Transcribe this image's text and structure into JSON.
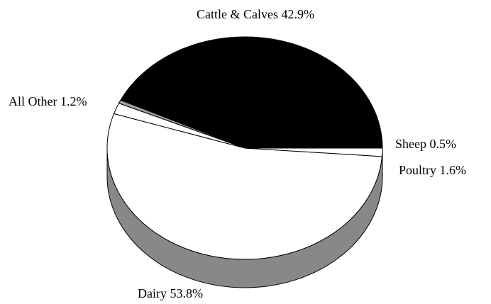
{
  "chart_data": {
    "type": "pie",
    "style": "3d",
    "title": "",
    "slices": [
      {
        "label": "Cattle & Calves 42.9%",
        "name": "Cattle & Calves",
        "value": 42.9,
        "color": "#000000"
      },
      {
        "label": "Sheep 0.5%",
        "name": "Sheep",
        "value": 0.5,
        "color": "#a0a0a0"
      },
      {
        "label": "Poultry 1.6%",
        "name": "Poultry",
        "value": 1.6,
        "color": "#ffffff"
      },
      {
        "label": "Dairy 53.8%",
        "name": "Dairy",
        "value": 53.8,
        "color": "#ffffff"
      },
      {
        "label": "All Other 1.2%",
        "name": "All Other",
        "value": 1.2,
        "color": "#ffffff"
      }
    ],
    "side_color": "#888888",
    "outline_color": "#000000"
  }
}
